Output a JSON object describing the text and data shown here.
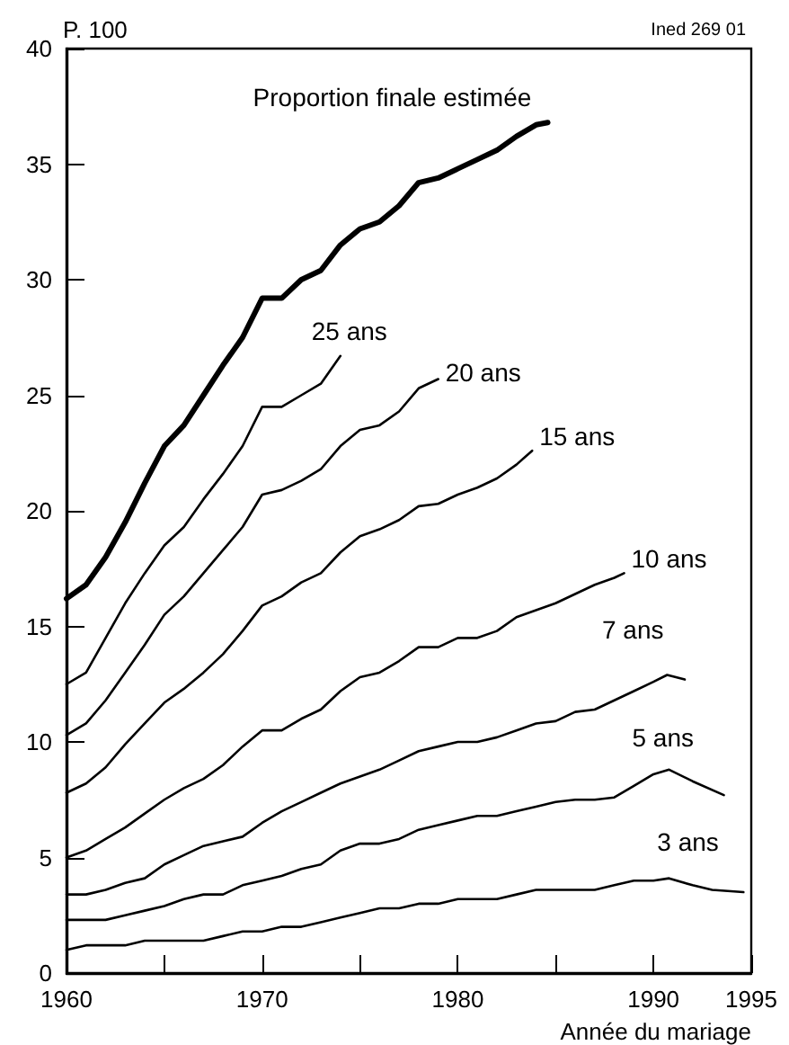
{
  "chart_data": {
    "type": "line",
    "xlabel": "Année du mariage",
    "ylabel": "P. 100",
    "annotations": [
      "Ined 269 01"
    ],
    "xlim": [
      1960,
      1995
    ],
    "xticks": [
      1960,
      {
        "value": 1965,
        "label": null
      },
      1970,
      {
        "value": 1975,
        "label": null
      },
      1980,
      {
        "value": 1985,
        "label": null
      },
      1990,
      1995
    ],
    "ylim": [
      0,
      40
    ],
    "yticks": [
      0,
      5,
      10,
      15,
      20,
      25,
      30,
      35,
      40
    ],
    "grid": false,
    "legend": false,
    "marker": "none",
    "line_style": "solid",
    "series": [
      {
        "name": "Proportion finale estimée",
        "color": "#000000",
        "x": [
          1960,
          1961,
          1962,
          1963,
          1964,
          1965,
          1966,
          1967,
          1968,
          1969,
          1970,
          1971,
          1972,
          1973,
          1974,
          1975,
          1976,
          1977,
          1978,
          1979,
          1980,
          1981,
          1982,
          1983,
          1984,
          1984.6
        ],
        "values": [
          16.2,
          16.8,
          18,
          19.5,
          21.2,
          22.8,
          23.7,
          25,
          26.3,
          27.5,
          29.2,
          29.2,
          30,
          30.4,
          31.5,
          32.2,
          32.5,
          33.2,
          34.2,
          34.4,
          34.8,
          35.2,
          35.6,
          36.2,
          36.7,
          36.8
        ]
      },
      {
        "name": "25 ans",
        "color": "#000000",
        "x": [
          1960,
          1961,
          1962,
          1963,
          1964,
          1965,
          1966,
          1967,
          1968,
          1969,
          1970,
          1971,
          1972,
          1973,
          1974
        ],
        "values": [
          12.5,
          13,
          14.5,
          16,
          17.3,
          18.5,
          19.3,
          20.5,
          21.6,
          22.8,
          24.5,
          24.5,
          25,
          25.5,
          26.7
        ]
      },
      {
        "name": "20 ans",
        "color": "#000000",
        "x": [
          1960,
          1961,
          1962,
          1963,
          1964,
          1965,
          1966,
          1967,
          1968,
          1969,
          1970,
          1971,
          1972,
          1973,
          1974,
          1975,
          1976,
          1977,
          1978,
          1979
        ],
        "values": [
          10.3,
          10.8,
          11.8,
          13,
          14.2,
          15.5,
          16.3,
          17.3,
          18.3,
          19.3,
          20.7,
          20.9,
          21.3,
          21.8,
          22.8,
          23.5,
          23.7,
          24.3,
          25.3,
          25.7
        ]
      },
      {
        "name": "15 ans",
        "color": "#000000",
        "x": [
          1960,
          1961,
          1962,
          1963,
          1964,
          1965,
          1966,
          1967,
          1968,
          1969,
          1970,
          1971,
          1972,
          1973,
          1974,
          1975,
          1976,
          1977,
          1978,
          1979,
          1980,
          1981,
          1982,
          1983,
          1983.8
        ],
        "values": [
          7.8,
          8.2,
          8.9,
          9.9,
          10.8,
          11.7,
          12.3,
          13,
          13.8,
          14.8,
          15.9,
          16.3,
          16.9,
          17.3,
          18.2,
          18.9,
          19.2,
          19.6,
          20.2,
          20.3,
          20.7,
          21,
          21.4,
          22,
          22.6
        ]
      },
      {
        "name": "10 ans",
        "color": "#000000",
        "x": [
          1960,
          1961,
          1962,
          1963,
          1964,
          1965,
          1966,
          1967,
          1968,
          1969,
          1970,
          1971,
          1972,
          1973,
          1974,
          1975,
          1976,
          1977,
          1978,
          1979,
          1980,
          1981,
          1982,
          1983,
          1984,
          1985,
          1986,
          1987,
          1988,
          1988.5
        ],
        "values": [
          5,
          5.3,
          5.8,
          6.3,
          6.9,
          7.5,
          8,
          8.4,
          9,
          9.8,
          10.5,
          10.5,
          11,
          11.4,
          12.2,
          12.8,
          13,
          13.5,
          14.1,
          14.1,
          14.5,
          14.5,
          14.8,
          15.4,
          15.7,
          16,
          16.4,
          16.8,
          17.1,
          17.3
        ]
      },
      {
        "name": "7 ans",
        "color": "#000000",
        "x": [
          1960,
          1961,
          1962,
          1963,
          1964,
          1965,
          1966,
          1967,
          1968,
          1969,
          1970,
          1971,
          1972,
          1973,
          1974,
          1975,
          1976,
          1977,
          1978,
          1979,
          1980,
          1981,
          1982,
          1983,
          1984,
          1985,
          1986,
          1987,
          1988,
          1989,
          1990,
          1990.7,
          1991.6
        ],
        "values": [
          3.4,
          3.4,
          3.6,
          3.9,
          4.1,
          4.7,
          5.1,
          5.5,
          5.7,
          5.9,
          6.5,
          7,
          7.4,
          7.8,
          8.2,
          8.5,
          8.8,
          9.2,
          9.6,
          9.8,
          10,
          10,
          10.2,
          10.5,
          10.8,
          10.9,
          11.3,
          11.4,
          11.8,
          12.2,
          12.6,
          12.9,
          12.7
        ]
      },
      {
        "name": "5 ans",
        "color": "#000000",
        "x": [
          1960,
          1961,
          1962,
          1963,
          1964,
          1965,
          1966,
          1967,
          1968,
          1969,
          1970,
          1971,
          1972,
          1973,
          1974,
          1975,
          1976,
          1977,
          1978,
          1979,
          1980,
          1981,
          1982,
          1983,
          1984,
          1985,
          1986,
          1987,
          1988,
          1989,
          1990,
          1990.8,
          1992,
          1993.6
        ],
        "values": [
          2.3,
          2.3,
          2.3,
          2.5,
          2.7,
          2.9,
          3.2,
          3.4,
          3.4,
          3.8,
          4,
          4.2,
          4.5,
          4.7,
          5.3,
          5.6,
          5.6,
          5.8,
          6.2,
          6.4,
          6.6,
          6.8,
          6.8,
          7,
          7.2,
          7.4,
          7.5,
          7.5,
          7.6,
          8.1,
          8.6,
          8.8,
          8.3,
          7.7
        ]
      },
      {
        "name": "3 ans",
        "color": "#000000",
        "x": [
          1960,
          1961,
          1962,
          1963,
          1964,
          1965,
          1966,
          1967,
          1968,
          1969,
          1970,
          1971,
          1972,
          1973,
          1974,
          1975,
          1976,
          1977,
          1978,
          1979,
          1980,
          1981,
          1982,
          1983,
          1984,
          1985,
          1986,
          1987,
          1988,
          1989,
          1990,
          1990.8,
          1992,
          1993,
          1994.6
        ],
        "values": [
          1,
          1.2,
          1.2,
          1.2,
          1.4,
          1.4,
          1.4,
          1.4,
          1.6,
          1.8,
          1.8,
          2,
          2,
          2.2,
          2.4,
          2.6,
          2.8,
          2.8,
          3,
          3,
          3.2,
          3.2,
          3.2,
          3.4,
          3.6,
          3.6,
          3.6,
          3.6,
          3.8,
          4,
          4,
          4.1,
          3.8,
          3.6,
          3.5
        ]
      }
    ]
  }
}
